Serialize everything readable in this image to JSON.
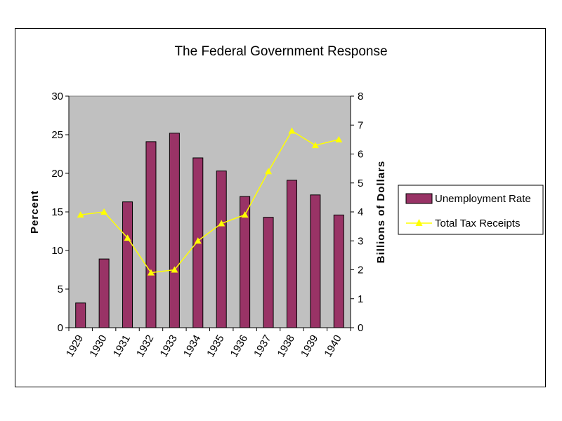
{
  "chart_data": {
    "type": "bar",
    "title": "The Federal Government Response",
    "categories": [
      "1929",
      "1930",
      "1931",
      "1932",
      "1933",
      "1934",
      "1935",
      "1936",
      "1937",
      "1938",
      "1939",
      "1940"
    ],
    "series": [
      {
        "name": "Unemployment Rate",
        "type": "bar",
        "axis": "left",
        "color": "#993366",
        "values": [
          3.2,
          8.9,
          16.3,
          24.1,
          25.2,
          22.0,
          20.3,
          17.0,
          14.3,
          19.1,
          17.2,
          14.6
        ]
      },
      {
        "name": "Total Tax Receipts",
        "type": "line",
        "axis": "right",
        "color": "#FFFF00",
        "values": [
          3.9,
          4.0,
          3.1,
          1.9,
          2.0,
          3.0,
          3.6,
          3.9,
          5.4,
          6.8,
          6.3,
          6.5
        ]
      }
    ],
    "ylabel": "Percent",
    "ylim": [
      0,
      30
    ],
    "yticks": [
      "0",
      "5",
      "10",
      "15",
      "20",
      "25",
      "30"
    ],
    "y2label": "Billions of Dollars",
    "y2lim": [
      0,
      8
    ],
    "y2ticks": [
      "0",
      "1",
      "2",
      "3",
      "4",
      "5",
      "6",
      "7",
      "8"
    ],
    "plot_background": "#C0C0C0",
    "legend_position": "right",
    "grid": false
  }
}
